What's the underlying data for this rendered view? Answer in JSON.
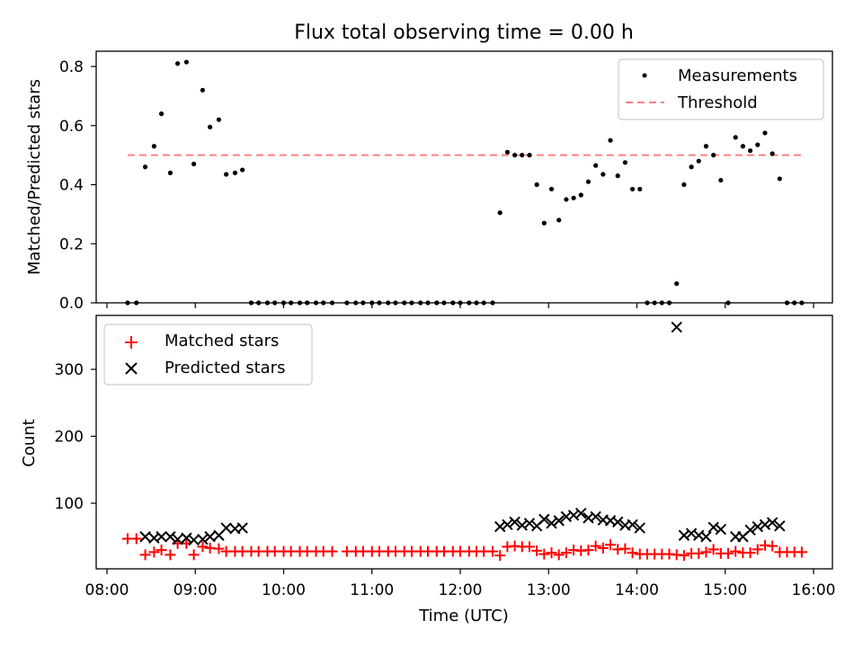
{
  "chart_data": [
    {
      "type": "scatter",
      "title": "Flux total observing time = 0.00 h",
      "ylabel": "Matched/Predicted stars",
      "xlabel": "",
      "xlim": [
        "08:00",
        "16:00"
      ],
      "ylim": [
        0,
        0.85
      ],
      "yticks": [
        "0.0",
        "0.2",
        "0.4",
        "0.6",
        "0.8"
      ],
      "legend_position": "top-right",
      "series": [
        {
          "name": "Measurements",
          "marker": "dot",
          "color": "#000000",
          "points": [
            [
              "08:14",
              0
            ],
            [
              "08:20",
              0
            ],
            [
              "08:26",
              0.46
            ],
            [
              "08:32",
              0.53
            ],
            [
              "08:37",
              0.64
            ],
            [
              "08:43",
              0.44
            ],
            [
              "08:48",
              0.81
            ],
            [
              "08:54",
              0.815
            ],
            [
              "08:59",
              0.47
            ],
            [
              "09:05",
              0.72
            ],
            [
              "09:10",
              0.595
            ],
            [
              "09:16",
              0.62
            ],
            [
              "09:21",
              0.435
            ],
            [
              "09:27",
              0.44
            ],
            [
              "09:32",
              0.45
            ],
            [
              "09:38",
              0
            ],
            [
              "09:43",
              0
            ],
            [
              "09:49",
              0
            ],
            [
              "09:54",
              0
            ],
            [
              "10:00",
              0
            ],
            [
              "10:05",
              0
            ],
            [
              "10:11",
              0
            ],
            [
              "10:16",
              0
            ],
            [
              "10:22",
              0
            ],
            [
              "10:27",
              0
            ],
            [
              "10:33",
              0
            ],
            [
              "10:43",
              0
            ],
            [
              "10:49",
              0
            ],
            [
              "10:54",
              0
            ],
            [
              "11:00",
              0
            ],
            [
              "11:05",
              0
            ],
            [
              "11:11",
              0
            ],
            [
              "11:16",
              0
            ],
            [
              "11:22",
              0
            ],
            [
              "11:27",
              0
            ],
            [
              "11:33",
              0
            ],
            [
              "11:38",
              0
            ],
            [
              "11:44",
              0
            ],
            [
              "11:49",
              0
            ],
            [
              "11:55",
              0
            ],
            [
              "12:00",
              0
            ],
            [
              "12:06",
              0
            ],
            [
              "12:11",
              0
            ],
            [
              "12:16",
              0
            ],
            [
              "12:22",
              0
            ],
            [
              "12:27",
              0.305
            ],
            [
              "12:32",
              0.51
            ],
            [
              "12:37",
              0.5
            ],
            [
              "12:42",
              0.5
            ],
            [
              "12:47",
              0.5
            ],
            [
              "12:52",
              0.4
            ],
            [
              "12:57",
              0.27
            ],
            [
              "13:02",
              0.385
            ],
            [
              "13:07",
              0.28
            ],
            [
              "13:12",
              0.35
            ],
            [
              "13:17",
              0.355
            ],
            [
              "13:22",
              0.365
            ],
            [
              "13:27",
              0.41
            ],
            [
              "13:32",
              0.465
            ],
            [
              "13:37",
              0.435
            ],
            [
              "13:42",
              0.55
            ],
            [
              "13:47",
              0.43
            ],
            [
              "13:52",
              0.475
            ],
            [
              "13:57",
              0.385
            ],
            [
              "14:02",
              0.385
            ],
            [
              "14:07",
              0
            ],
            [
              "14:12",
              0
            ],
            [
              "14:17",
              0
            ],
            [
              "14:22",
              0
            ],
            [
              "14:27",
              0.065
            ],
            [
              "14:32",
              0.4
            ],
            [
              "14:37",
              0.46
            ],
            [
              "14:42",
              0.48
            ],
            [
              "14:47",
              0.53
            ],
            [
              "14:52",
              0.5
            ],
            [
              "14:57",
              0.415
            ],
            [
              "15:02",
              0
            ],
            [
              "15:07",
              0.56
            ],
            [
              "15:12",
              0.53
            ],
            [
              "15:17",
              0.515
            ],
            [
              "15:22",
              0.535
            ],
            [
              "15:27",
              0.575
            ],
            [
              "15:32",
              0.505
            ],
            [
              "15:37",
              0.42
            ],
            [
              "15:42",
              0
            ],
            [
              "15:47",
              0
            ],
            [
              "15:52",
              0
            ]
          ]
        },
        {
          "name": "Threshold",
          "marker": "dashed-line",
          "color": "#ff8080",
          "points": [
            [
              "08:14",
              0.5
            ],
            [
              "15:52",
              0.5
            ]
          ]
        }
      ]
    },
    {
      "type": "scatter",
      "title": "",
      "ylabel": "Count",
      "xlabel": "Time (UTC)",
      "xlim": [
        "08:00",
        "16:00"
      ],
      "ylim": [
        0,
        370
      ],
      "yticks": [
        "100",
        "200",
        "300"
      ],
      "xticks": [
        "08:00",
        "09:00",
        "10:00",
        "11:00",
        "12:00",
        "13:00",
        "14:00",
        "15:00",
        "16:00"
      ],
      "legend_position": "top-left",
      "series": [
        {
          "name": "Matched stars",
          "marker": "plus",
          "color": "#ff0000",
          "points": [
            [
              "08:14",
              47
            ],
            [
              "08:20",
              47
            ],
            [
              "08:26",
              23
            ],
            [
              "08:32",
              27
            ],
            [
              "08:37",
              30
            ],
            [
              "08:43",
              23
            ],
            [
              "08:48",
              40
            ],
            [
              "08:54",
              40
            ],
            [
              "08:59",
              23
            ],
            [
              "09:05",
              35
            ],
            [
              "09:10",
              33
            ],
            [
              "09:16",
              32
            ],
            [
              "09:21",
              28
            ],
            [
              "09:27",
              28
            ],
            [
              "09:32",
              28
            ],
            [
              "09:38",
              28
            ],
            [
              "09:43",
              28
            ],
            [
              "09:49",
              28
            ],
            [
              "09:54",
              28
            ],
            [
              "10:00",
              28
            ],
            [
              "10:05",
              28
            ],
            [
              "10:11",
              28
            ],
            [
              "10:16",
              28
            ],
            [
              "10:22",
              28
            ],
            [
              "10:27",
              28
            ],
            [
              "10:33",
              28
            ],
            [
              "10:43",
              28
            ],
            [
              "10:49",
              28
            ],
            [
              "10:54",
              28
            ],
            [
              "11:00",
              28
            ],
            [
              "11:05",
              28
            ],
            [
              "11:11",
              28
            ],
            [
              "11:16",
              28
            ],
            [
              "11:22",
              28
            ],
            [
              "11:27",
              28
            ],
            [
              "11:33",
              28
            ],
            [
              "11:38",
              28
            ],
            [
              "11:44",
              28
            ],
            [
              "11:49",
              28
            ],
            [
              "11:55",
              28
            ],
            [
              "12:00",
              28
            ],
            [
              "12:06",
              28
            ],
            [
              "12:11",
              28
            ],
            [
              "12:16",
              28
            ],
            [
              "12:22",
              28
            ],
            [
              "12:27",
              22
            ],
            [
              "12:32",
              35
            ],
            [
              "12:37",
              36
            ],
            [
              "12:42",
              35
            ],
            [
              "12:47",
              35
            ],
            [
              "12:52",
              29
            ],
            [
              "12:57",
              24
            ],
            [
              "13:02",
              26
            ],
            [
              "13:07",
              23
            ],
            [
              "13:12",
              26
            ],
            [
              "13:17",
              30
            ],
            [
              "13:22",
              29
            ],
            [
              "13:27",
              30
            ],
            [
              "13:32",
              36
            ],
            [
              "13:37",
              33
            ],
            [
              "13:42",
              38
            ],
            [
              "13:47",
              31
            ],
            [
              "13:52",
              32
            ],
            [
              "13:57",
              26
            ],
            [
              "14:02",
              24
            ],
            [
              "14:07",
              24
            ],
            [
              "14:12",
              24
            ],
            [
              "14:17",
              24
            ],
            [
              "14:22",
              24
            ],
            [
              "14:27",
              23
            ],
            [
              "14:32",
              22
            ],
            [
              "14:37",
              25
            ],
            [
              "14:42",
              25
            ],
            [
              "14:47",
              27
            ],
            [
              "14:52",
              31
            ],
            [
              "14:57",
              25
            ],
            [
              "15:02",
              25
            ],
            [
              "15:07",
              28
            ],
            [
              "15:12",
              26
            ],
            [
              "15:17",
              26
            ],
            [
              "15:22",
              31
            ],
            [
              "15:27",
              37
            ],
            [
              "15:32",
              36
            ],
            [
              "15:37",
              27
            ],
            [
              "15:42",
              27
            ],
            [
              "15:47",
              27
            ],
            [
              "15:52",
              27
            ]
          ]
        },
        {
          "name": "Predicted stars",
          "marker": "x",
          "color": "#000000",
          "points": [
            [
              "08:26",
              50
            ],
            [
              "08:32",
              48
            ],
            [
              "08:37",
              50
            ],
            [
              "08:43",
              50
            ],
            [
              "08:48",
              46
            ],
            [
              "08:54",
              48
            ],
            [
              "08:59",
              45
            ],
            [
              "09:05",
              46
            ],
            [
              "09:10",
              50
            ],
            [
              "09:16",
              52
            ],
            [
              "09:21",
              63
            ],
            [
              "09:27",
              62
            ],
            [
              "09:32",
              63
            ],
            [
              "12:27",
              65
            ],
            [
              "12:32",
              68
            ],
            [
              "12:37",
              72
            ],
            [
              "12:42",
              67
            ],
            [
              "12:47",
              70
            ],
            [
              "12:52",
              66
            ],
            [
              "12:57",
              76
            ],
            [
              "13:02",
              70
            ],
            [
              "13:07",
              74
            ],
            [
              "13:12",
              80
            ],
            [
              "13:17",
              82
            ],
            [
              "13:22",
              85
            ],
            [
              "13:27",
              78
            ],
            [
              "13:32",
              80
            ],
            [
              "13:37",
              75
            ],
            [
              "13:42",
              74
            ],
            [
              "13:47",
              72
            ],
            [
              "13:52",
              67
            ],
            [
              "13:57",
              68
            ],
            [
              "14:02",
              63
            ],
            [
              "14:27",
              363
            ],
            [
              "14:32",
              52
            ],
            [
              "14:37",
              55
            ],
            [
              "14:42",
              52
            ],
            [
              "14:47",
              50
            ],
            [
              "14:52",
              64
            ],
            [
              "14:57",
              61
            ],
            [
              "15:07",
              50
            ],
            [
              "15:12",
              50
            ],
            [
              "15:17",
              60
            ],
            [
              "15:22",
              65
            ],
            [
              "15:27",
              68
            ],
            [
              "15:32",
              71
            ],
            [
              "15:37",
              66
            ]
          ]
        }
      ]
    }
  ]
}
